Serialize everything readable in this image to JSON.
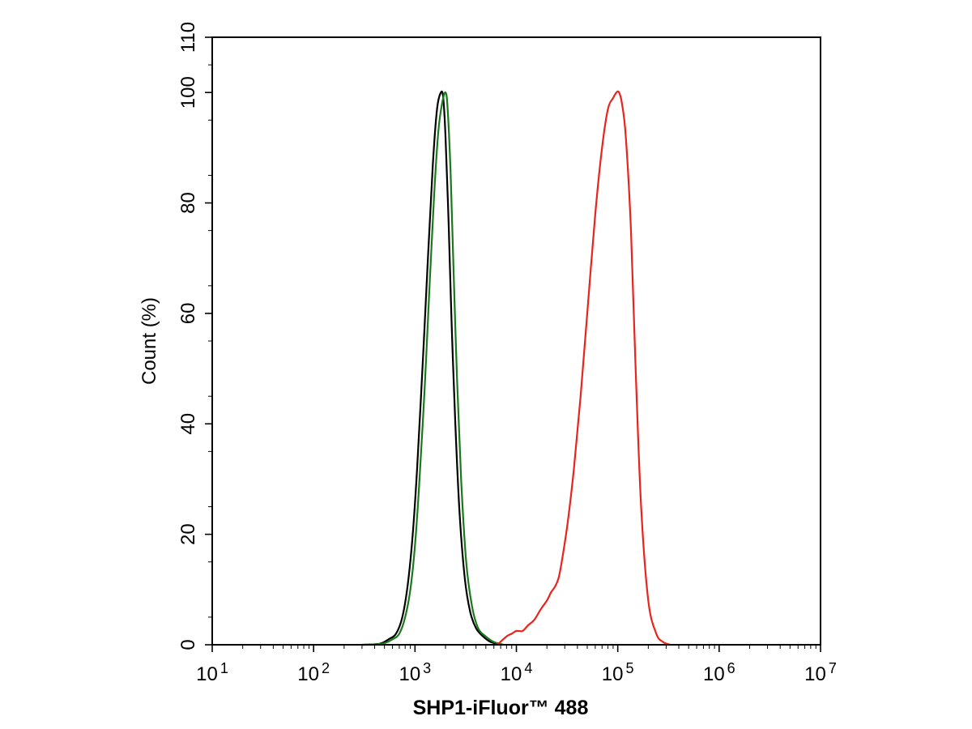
{
  "chart_data": {
    "type": "line",
    "xlabel": "SHP1-iFluor™ 488",
    "ylabel": "Count  (%)",
    "x_scale": "log",
    "xlim": [
      10,
      10000000
    ],
    "ylim": [
      0,
      110
    ],
    "x_ticks": [
      {
        "value": 10,
        "base": "10",
        "exp": "1"
      },
      {
        "value": 100,
        "base": "10",
        "exp": "2"
      },
      {
        "value": 1000,
        "base": "10",
        "exp": "3"
      },
      {
        "value": 10000,
        "base": "10",
        "exp": "4"
      },
      {
        "value": 100000,
        "base": "10",
        "exp": "5"
      },
      {
        "value": 1000000,
        "base": "10",
        "exp": "6"
      },
      {
        "value": 10000000,
        "base": "10",
        "exp": "7"
      }
    ],
    "y_ticks": [
      {
        "value": 0,
        "label": "0"
      },
      {
        "value": 20,
        "label": "20"
      },
      {
        "value": 40,
        "label": "40"
      },
      {
        "value": 60,
        "label": "60"
      },
      {
        "value": 80,
        "label": "80"
      },
      {
        "value": 100,
        "label": "100"
      },
      {
        "value": 110,
        "label": "110"
      }
    ],
    "grid": false,
    "series": [
      {
        "color": "#000000",
        "x": [
          300,
          450,
          550,
          650,
          750,
          850,
          950,
          1050,
          1200,
          1350,
          1500,
          1650,
          1800,
          1900,
          2000,
          2150,
          2300,
          2500,
          2750,
          3100,
          3500,
          4000,
          4700,
          5600,
          7000
        ],
        "y": [
          0,
          0.2,
          1,
          2,
          5,
          11,
          20,
          32,
          52,
          71,
          87,
          97,
          100,
          99,
          92,
          76,
          58,
          40,
          24,
          12,
          6,
          3,
          1.5,
          0.5,
          0
        ]
      },
      {
        "color": "#1a7a1a",
        "x": [
          320,
          480,
          600,
          700,
          800,
          900,
          1000,
          1100,
          1250,
          1400,
          1550,
          1700,
          1850,
          2000,
          2100,
          2250,
          2400,
          2600,
          2850,
          3200,
          3650,
          4200,
          5000,
          6000,
          7500
        ],
        "y": [
          0,
          0.2,
          1,
          2,
          5,
          10,
          18,
          29,
          47,
          66,
          82,
          93,
          98,
          100,
          97,
          85,
          68,
          48,
          30,
          15,
          7,
          3,
          1.5,
          0.5,
          0
        ]
      },
      {
        "color": "#e8241c",
        "x": [
          6500,
          8000,
          9000,
          10000,
          11500,
          13000,
          15000,
          17500,
          20000,
          22000,
          24000,
          26000,
          28000,
          32000,
          37000,
          43000,
          50000,
          60000,
          70000,
          80000,
          90000,
          97000,
          103000,
          110000,
          120000,
          135000,
          150000,
          170000,
          200000,
          240000,
          280000,
          330000
        ],
        "y": [
          0,
          1.5,
          2,
          2.5,
          2.5,
          3.5,
          4.5,
          6.5,
          8,
          9.5,
          10.5,
          12,
          15,
          22,
          32,
          45,
          60,
          78,
          90,
          97,
          99,
          100,
          100,
          98,
          92,
          75,
          50,
          25,
          8,
          2,
          0.5,
          0
        ]
      }
    ]
  }
}
